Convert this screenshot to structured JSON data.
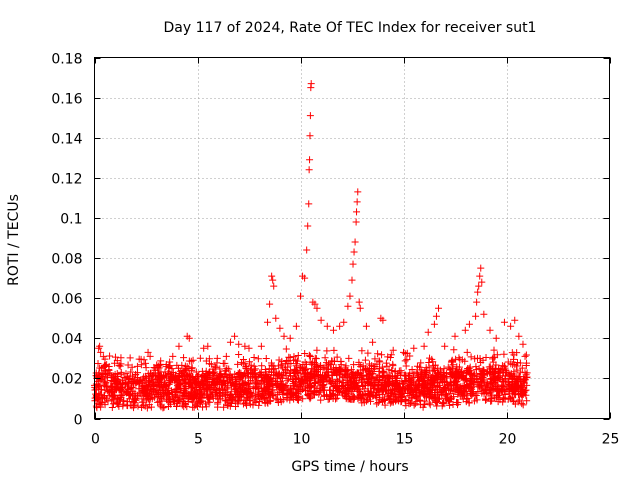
{
  "chart_data": {
    "type": "scatter",
    "title": "Day 117 of 2024, Rate Of TEC Index for receiver sut1",
    "xlabel": "GPS time / hours",
    "ylabel": "ROTI / TECUs",
    "xlim": [
      0,
      25
    ],
    "ylim": [
      0,
      0.18
    ],
    "xticks": [
      0,
      5,
      10,
      15,
      20,
      25
    ],
    "yticks": [
      0,
      0.02,
      0.04,
      0.06,
      0.08,
      0.1,
      0.12,
      0.14,
      0.16,
      0.18
    ],
    "xtick_labels": [
      "0",
      "5",
      "10",
      "15",
      "20",
      "25"
    ],
    "ytick_labels": [
      "0",
      "0.02",
      "0.04",
      "0.06",
      "0.08",
      "0.1",
      "0.12",
      "0.14",
      "0.16",
      "0.18"
    ],
    "grid": true,
    "marker": "+",
    "color": "#ff0000",
    "data_span_hours": [
      0,
      21
    ],
    "baseline_range": [
      0.005,
      0.025
    ],
    "series": [
      {
        "name": "sut1",
        "points": [
          [
            0.2,
            0.035
          ],
          [
            0.25,
            0.036
          ],
          [
            0.3,
            0.033
          ],
          [
            0.5,
            0.026
          ],
          [
            0.7,
            0.024
          ],
          [
            1.0,
            0.022
          ],
          [
            1.3,
            0.023
          ],
          [
            1.6,
            0.021
          ],
          [
            2.0,
            0.022
          ],
          [
            2.6,
            0.033
          ],
          [
            2.7,
            0.031
          ],
          [
            3.2,
            0.027
          ],
          [
            3.8,
            0.031
          ],
          [
            4.1,
            0.036
          ],
          [
            4.5,
            0.041
          ],
          [
            4.6,
            0.04
          ],
          [
            5.3,
            0.035
          ],
          [
            5.5,
            0.036
          ],
          [
            6.4,
            0.031
          ],
          [
            6.6,
            0.038
          ],
          [
            6.8,
            0.041
          ],
          [
            7.0,
            0.037
          ],
          [
            7.3,
            0.036
          ],
          [
            7.5,
            0.035
          ],
          [
            8.1,
            0.036
          ],
          [
            8.4,
            0.048
          ],
          [
            8.5,
            0.057
          ],
          [
            8.6,
            0.071
          ],
          [
            8.65,
            0.069
          ],
          [
            8.7,
            0.066
          ],
          [
            8.8,
            0.05
          ],
          [
            9.0,
            0.045
          ],
          [
            9.2,
            0.041
          ],
          [
            9.5,
            0.04
          ],
          [
            9.8,
            0.046
          ],
          [
            10.0,
            0.061
          ],
          [
            10.1,
            0.071
          ],
          [
            10.2,
            0.07
          ],
          [
            10.3,
            0.084
          ],
          [
            10.35,
            0.096
          ],
          [
            10.4,
            0.107
          ],
          [
            10.42,
            0.124
          ],
          [
            10.44,
            0.129
          ],
          [
            10.46,
            0.141
          ],
          [
            10.48,
            0.151
          ],
          [
            10.5,
            0.165
          ],
          [
            10.52,
            0.167
          ],
          [
            10.6,
            0.058
          ],
          [
            10.7,
            0.057
          ],
          [
            10.8,
            0.055
          ],
          [
            11.0,
            0.049
          ],
          [
            11.3,
            0.046
          ],
          [
            11.6,
            0.044
          ],
          [
            11.9,
            0.046
          ],
          [
            12.1,
            0.048
          ],
          [
            12.3,
            0.056
          ],
          [
            12.4,
            0.061
          ],
          [
            12.5,
            0.069
          ],
          [
            12.55,
            0.077
          ],
          [
            12.6,
            0.083
          ],
          [
            12.65,
            0.088
          ],
          [
            12.7,
            0.098
          ],
          [
            12.72,
            0.103
          ],
          [
            12.75,
            0.108
          ],
          [
            12.78,
            0.113
          ],
          [
            12.85,
            0.058
          ],
          [
            12.9,
            0.055
          ],
          [
            13.2,
            0.046
          ],
          [
            13.5,
            0.038
          ],
          [
            13.9,
            0.05
          ],
          [
            14.0,
            0.049
          ],
          [
            14.5,
            0.034
          ],
          [
            15.0,
            0.033
          ],
          [
            15.5,
            0.035
          ],
          [
            16.0,
            0.036
          ],
          [
            16.2,
            0.043
          ],
          [
            16.5,
            0.047
          ],
          [
            16.6,
            0.051
          ],
          [
            16.7,
            0.055
          ],
          [
            17.0,
            0.036
          ],
          [
            17.5,
            0.041
          ],
          [
            18.0,
            0.044
          ],
          [
            18.2,
            0.047
          ],
          [
            18.5,
            0.051
          ],
          [
            18.55,
            0.058
          ],
          [
            18.6,
            0.063
          ],
          [
            18.65,
            0.066
          ],
          [
            18.7,
            0.071
          ],
          [
            18.75,
            0.075
          ],
          [
            18.8,
            0.068
          ],
          [
            18.9,
            0.052
          ],
          [
            19.2,
            0.044
          ],
          [
            19.5,
            0.04
          ],
          [
            19.9,
            0.048
          ],
          [
            20.2,
            0.046
          ],
          [
            20.4,
            0.049
          ],
          [
            20.6,
            0.041
          ],
          [
            20.8,
            0.037
          ],
          [
            20.9,
            0.031
          ]
        ]
      }
    ]
  }
}
